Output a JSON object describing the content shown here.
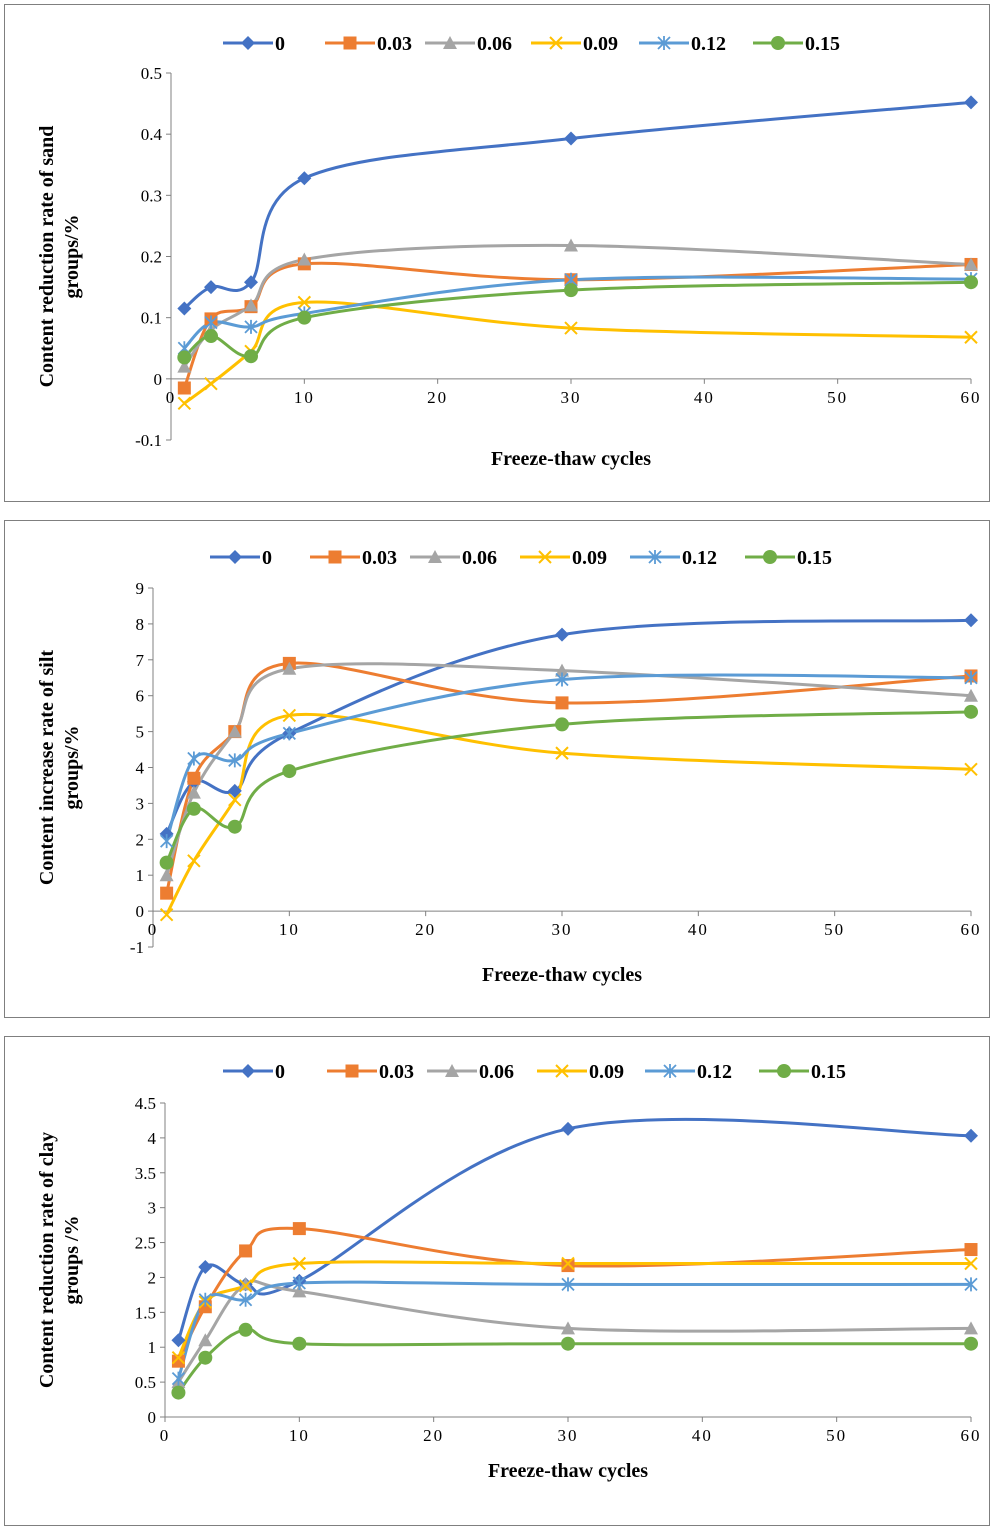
{
  "legend_labels": [
    "0",
    "0.03",
    "0.06",
    "0.09",
    "0.12",
    "0.15"
  ],
  "colors": [
    "#4472C4",
    "#ED7D31",
    "#A5A5A5",
    "#FFC000",
    "#5B9BD5",
    "#70AD47"
  ],
  "markers": [
    "diamond",
    "square",
    "triangle",
    "x",
    "asterisk",
    "circle"
  ],
  "chart_data": [
    {
      "type": "line",
      "xlabel": "Freeze-thaw cycles",
      "ylabel_lines": [
        "Content reduction rate of sand",
        "groups/%"
      ],
      "xlim": [
        0,
        60
      ],
      "ylim": [
        -0.1,
        0.5
      ],
      "xticks": [
        "0",
        "10",
        "20",
        "30",
        "40",
        "50",
        "60"
      ],
      "yticks": [
        "-0.1",
        "0",
        "0.1",
        "0.2",
        "0.3",
        "0.4",
        "0.5"
      ],
      "x": [
        1,
        3,
        6,
        10,
        30,
        60
      ],
      "series": [
        {
          "name": "0",
          "values": [
            0.115,
            0.15,
            0.158,
            0.328,
            0.393,
            0.452
          ]
        },
        {
          "name": "0.03",
          "values": [
            -0.015,
            0.098,
            0.118,
            0.188,
            0.162,
            0.187
          ]
        },
        {
          "name": "0.06",
          "values": [
            0.02,
            0.08,
            0.12,
            0.195,
            0.218,
            0.187
          ]
        },
        {
          "name": "0.09",
          "values": [
            -0.04,
            -0.008,
            0.045,
            0.125,
            0.083,
            0.068
          ]
        },
        {
          "name": "0.12",
          "values": [
            0.05,
            0.092,
            0.085,
            0.107,
            0.162,
            0.163
          ]
        },
        {
          "name": "0.15",
          "values": [
            0.035,
            0.07,
            0.037,
            0.1,
            0.145,
            0.158
          ]
        }
      ]
    },
    {
      "type": "line",
      "xlabel": "Freeze-thaw cycles",
      "ylabel_lines": [
        "Content increase rate of silt",
        "groups/%"
      ],
      "xlim": [
        0,
        60
      ],
      "ylim": [
        -1,
        9
      ],
      "xticks": [
        "0",
        "10",
        "20",
        "30",
        "40",
        "50",
        "60"
      ],
      "yticks": [
        "-1",
        "0",
        "1",
        "2",
        "3",
        "4",
        "5",
        "6",
        "7",
        "8",
        "9"
      ],
      "x": [
        1,
        3,
        6,
        10,
        30,
        60
      ],
      "series": [
        {
          "name": "0",
          "values": [
            2.15,
            3.6,
            3.35,
            4.95,
            7.7,
            8.1
          ]
        },
        {
          "name": "0.03",
          "values": [
            0.5,
            3.7,
            5.0,
            6.9,
            5.8,
            6.55
          ]
        },
        {
          "name": "0.06",
          "values": [
            1.0,
            3.3,
            5.0,
            6.75,
            6.7,
            6.0
          ]
        },
        {
          "name": "0.09",
          "values": [
            -0.1,
            1.4,
            3.1,
            5.45,
            4.4,
            3.95
          ]
        },
        {
          "name": "0.12",
          "values": [
            1.95,
            4.25,
            4.2,
            4.95,
            6.45,
            6.5
          ]
        },
        {
          "name": "0.15",
          "values": [
            1.35,
            2.85,
            2.35,
            3.9,
            5.2,
            5.55
          ]
        }
      ]
    },
    {
      "type": "line",
      "xlabel": "Freeze-thaw cycles",
      "ylabel_lines": [
        "Content reduction rate of clay",
        "groups /%"
      ],
      "xlim": [
        0,
        60
      ],
      "ylim": [
        0,
        4.5
      ],
      "xticks": [
        "0",
        "10",
        "20",
        "30",
        "40",
        "50",
        "60"
      ],
      "yticks": [
        "0",
        "0.5",
        "1",
        "1.5",
        "2",
        "2.5",
        "3",
        "3.5",
        "4",
        "4.5"
      ],
      "x": [
        1,
        3,
        6,
        10,
        30,
        60
      ],
      "series": [
        {
          "name": "0",
          "values": [
            1.1,
            2.15,
            1.9,
            1.95,
            4.13,
            4.03
          ]
        },
        {
          "name": "0.03",
          "values": [
            0.8,
            1.58,
            2.38,
            2.7,
            2.17,
            2.4
          ]
        },
        {
          "name": "0.06",
          "values": [
            0.5,
            1.1,
            1.9,
            1.8,
            1.27,
            1.27
          ]
        },
        {
          "name": "0.09",
          "values": [
            0.85,
            1.65,
            1.88,
            2.2,
            2.2,
            2.2
          ]
        },
        {
          "name": "0.12",
          "values": [
            0.55,
            1.68,
            1.68,
            1.92,
            1.9,
            1.9
          ]
        },
        {
          "name": "0.15",
          "values": [
            0.35,
            0.85,
            1.25,
            1.05,
            1.05,
            1.05
          ]
        }
      ]
    }
  ]
}
